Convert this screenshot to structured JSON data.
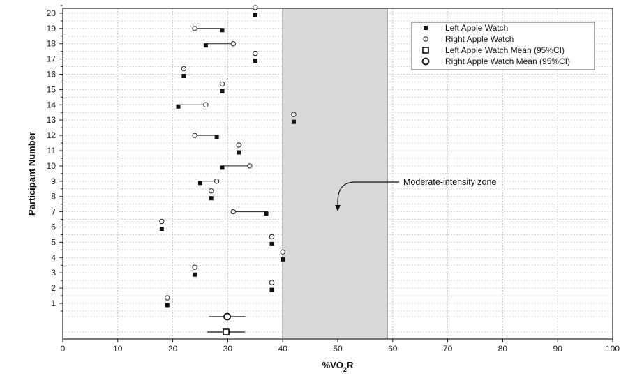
{
  "chart_data": {
    "type": "scatter",
    "xlabel_prefix": "%VO",
    "xlabel_sub": "2",
    "xlabel_suffix": "R",
    "ylabel": "Participant Number",
    "xlim": [
      0,
      100
    ],
    "x_ticks": [
      "0",
      "10",
      "20",
      "30",
      "40",
      "50",
      "60",
      "70",
      "80",
      "90",
      "100"
    ],
    "y_ticks": [
      "1",
      "2",
      "3",
      "4",
      "5",
      "6",
      "7",
      "8",
      "9",
      "10",
      "11",
      "12",
      "13",
      "14",
      "15",
      "16",
      "17",
      "18",
      "19",
      "20"
    ],
    "grid": true,
    "legend_position": "top-right",
    "shaded_zone": {
      "x_start": 40,
      "x_end": 59,
      "color": "#d9d9d9",
      "label": "Moderate-intensity zone"
    },
    "series": [
      {
        "name": "Left Apple Watch",
        "marker": "filled-square",
        "participants": [
          1,
          2,
          3,
          4,
          5,
          6,
          7,
          8,
          9,
          10,
          11,
          12,
          13,
          14,
          15,
          16,
          17,
          18,
          19,
          20
        ],
        "values": [
          19,
          38,
          24,
          40,
          38,
          18,
          37,
          27,
          25,
          29,
          32,
          28,
          42,
          21,
          29,
          22,
          35,
          26,
          29,
          35
        ]
      },
      {
        "name": "Right Apple Watch",
        "marker": "open-circle",
        "participants": [
          1,
          2,
          3,
          4,
          5,
          6,
          7,
          8,
          9,
          10,
          11,
          12,
          13,
          14,
          15,
          16,
          17,
          18,
          19,
          20
        ],
        "values": [
          19,
          38,
          24,
          40,
          38,
          18,
          31,
          27,
          28,
          34,
          32,
          24,
          42,
          26,
          29,
          22,
          35,
          31,
          24,
          35
        ]
      },
      {
        "name": "Left Apple Watch Mean (95%CI)",
        "marker": "open-square",
        "mean": 29.7,
        "ci": [
          26.3,
          33.1
        ]
      },
      {
        "name": "Right Apple Watch Mean (95%CI)",
        "marker": "large-open-circle",
        "mean": 29.9,
        "ci": [
          26.6,
          33.2
        ]
      }
    ]
  }
}
